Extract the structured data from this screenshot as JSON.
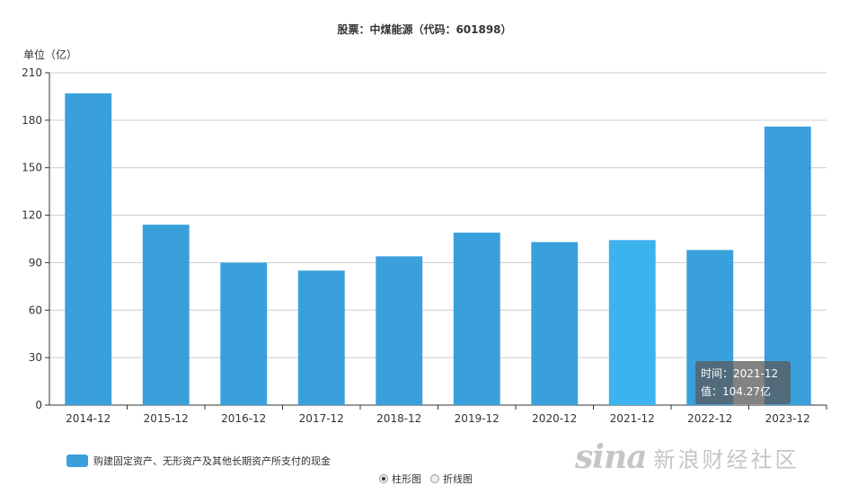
{
  "chart_data": {
    "type": "bar",
    "title": "股票：中煤能源（代码：601898）",
    "ylabel": "单位（亿）",
    "categories": [
      "2014-12",
      "2015-12",
      "2016-12",
      "2017-12",
      "2018-12",
      "2019-12",
      "2020-12",
      "2021-12",
      "2022-12",
      "2023-12"
    ],
    "series": [
      {
        "name": "购建固定资产、无形资产及其他长期资产所支付的现金",
        "values": [
          197,
          114,
          90,
          85,
          94,
          109,
          103,
          104.27,
          98,
          176
        ]
      }
    ],
    "ylim": [
      0,
      210
    ],
    "yticks": [
      0,
      30,
      60,
      90,
      120,
      150,
      180,
      210
    ],
    "grid": true,
    "legend_position": "bottom-left",
    "highlight_index": 7
  },
  "colors": {
    "bar": "#3aa0dc",
    "bar_highlight": "#3db3ee",
    "grid": "#cccccc",
    "legend": "#3aa0dc"
  },
  "tooltip": {
    "time_line": "时间：2021-12",
    "value_line": "值：104.27亿"
  },
  "toggle": {
    "bar_label": "柱形图",
    "line_label": "折线图",
    "selected": "bar"
  },
  "watermark": {
    "logo": "sina",
    "text": "新浪财经社区"
  }
}
